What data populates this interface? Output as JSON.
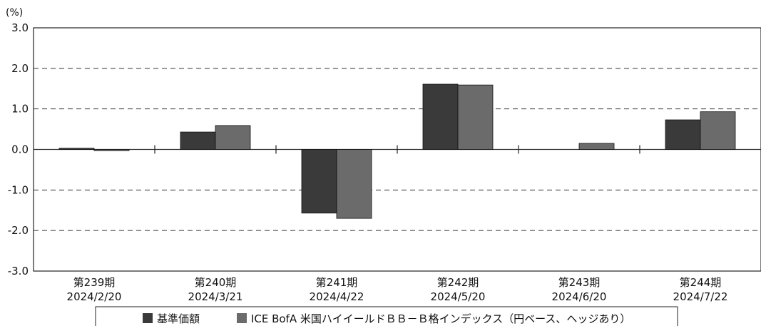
{
  "chart_data": {
    "type": "bar",
    "unit_label": "(%)",
    "categories": [
      {
        "period": "第239期",
        "date": "2024/2/20"
      },
      {
        "period": "第240期",
        "date": "2024/3/21"
      },
      {
        "period": "第241期",
        "date": "2024/4/22"
      },
      {
        "period": "第242期",
        "date": "2024/5/20"
      },
      {
        "period": "第243期",
        "date": "2024/6/20"
      },
      {
        "period": "第244期",
        "date": "2024/7/22"
      }
    ],
    "series": [
      {
        "name": "基準価額",
        "color": "#3a3a3a",
        "values": [
          0.03,
          0.43,
          -1.57,
          1.61,
          0.0,
          0.73
        ]
      },
      {
        "name": "ICE BofA 米国ハイイールドＢＢ－Ｂ格インデックス（円ベース、ヘッジあり）",
        "color": "#6b6b6b",
        "values": [
          -0.03,
          0.59,
          -1.7,
          1.59,
          0.15,
          0.93
        ]
      }
    ],
    "ylim": [
      -3.0,
      3.0
    ],
    "yticks": [
      "3.0",
      "2.0",
      "1.0",
      "0.0",
      "-1.0",
      "-2.0",
      "-3.0"
    ],
    "ytick_values": [
      3,
      2,
      1,
      0,
      -1,
      -2,
      -3
    ],
    "grid": "dashed horizontal",
    "legend_position": "bottom"
  }
}
